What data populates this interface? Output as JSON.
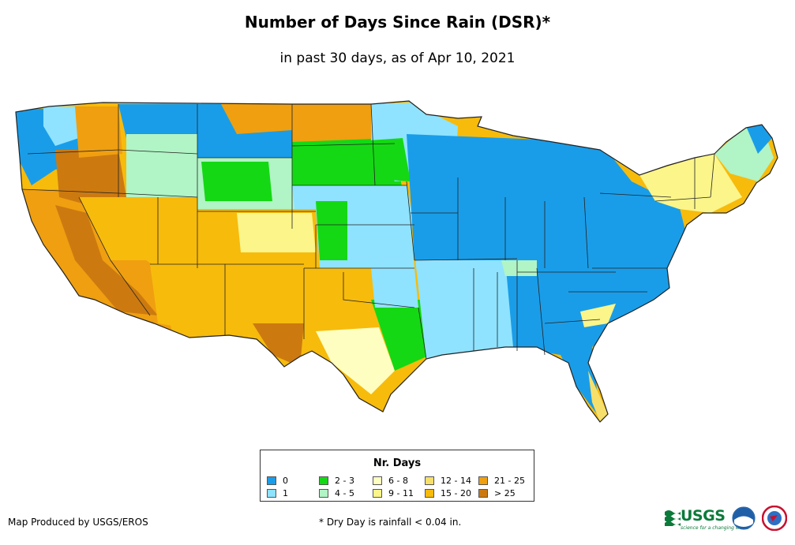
{
  "title": "Number of Days Since Rain (DSR)*",
  "subtitle": "in past 30 days, as of Apr 10, 2021",
  "legend": {
    "title": "Nr. Days",
    "items": [
      {
        "label": "0",
        "color": "#1a9de8"
      },
      {
        "label": "1",
        "color": "#8fe3ff"
      },
      {
        "label": "2 - 3",
        "color": "#14d814"
      },
      {
        "label": "4 - 5",
        "color": "#b1f4c5"
      },
      {
        "label": "6 - 8",
        "color": "#fefec0"
      },
      {
        "label": "9 - 11",
        "color": "#fbf58a"
      },
      {
        "label": "12 - 14",
        "color": "#f7df6b"
      },
      {
        "label": "15 - 20",
        "color": "#f7bb0c"
      },
      {
        "label": "21 - 25",
        "color": "#ef9f10"
      },
      {
        "label": "> 25",
        "color": "#cc7a10"
      }
    ]
  },
  "footer": {
    "producer": "Map Produced by USGS/EROS",
    "note": "* Dry Day is rainfall < 0.04 in."
  },
  "logos": {
    "usgs": "USGS",
    "usgs_tagline": "science for a changing world",
    "noaa": "noaa-logo-icon",
    "nws": "nws-logo-icon"
  }
}
